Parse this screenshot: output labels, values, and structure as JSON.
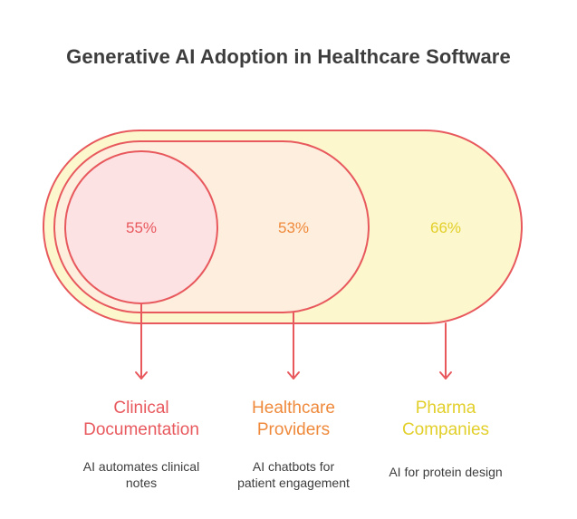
{
  "title": "Generative AI Adoption in Healthcare Software",
  "colors": {
    "stroke": "#e8595e",
    "outer_fill": "#fdf7cd",
    "middle_fill": "#fdeedd",
    "inner_fill": "#fde2e4",
    "clinical_text": "#e8595e",
    "providers_text": "#ef8a3c",
    "pharma_text": "#e2cf2a",
    "description_text": "#3d3d3d"
  },
  "segments": [
    {
      "percent": "55%",
      "label_line1": "Clinical",
      "label_line2": "Documentation",
      "description_line1": "AI automates clinical",
      "description_line2": "notes"
    },
    {
      "percent": "53%",
      "label_line1": "Healthcare",
      "label_line2": "Providers",
      "description_line1": "AI chatbots for",
      "description_line2": "patient engagement"
    },
    {
      "percent": "66%",
      "label_line1": "Pharma",
      "label_line2": "Companies",
      "description_line1": "AI for protein design",
      "description_line2": ""
    }
  ]
}
